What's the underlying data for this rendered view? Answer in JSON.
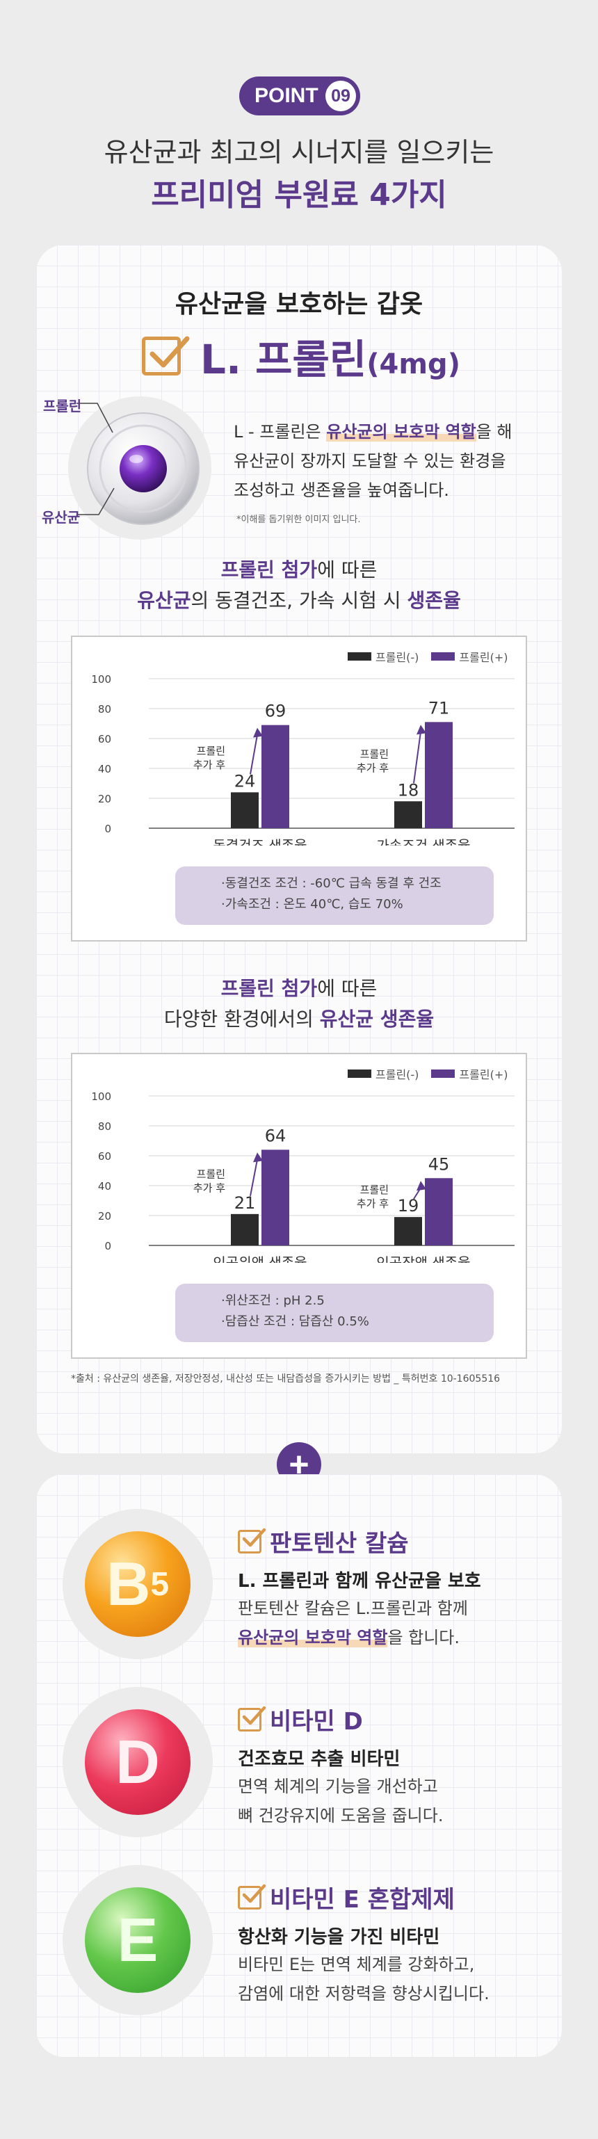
{
  "header": {
    "point_label": "POINT",
    "point_number": "09",
    "subtitle": "유산균과 최고의 시너지를 일으키는",
    "title": "프리미엄 부원료 4가지"
  },
  "proline": {
    "section_title": "유산균을 보호하는 갑옷",
    "name": "L. 프롤린",
    "dose": "(4mg)",
    "orb_label_top": "프롤린",
    "orb_label_bottom": "유산균",
    "desc_line1_pre": "L - 프롤린은 ",
    "desc_line1_hl": "유산균의 보호막 역할",
    "desc_line1_post": "을 해",
    "desc_line2": "유산균이 장까지 도달할 수 있는 환경을",
    "desc_line3": "조성하고 생존율을 높여줍니다.",
    "image_note": "*이해를 돕기위한 이미지 입니다."
  },
  "chart1_heading": {
    "l1_bold": "프롤린 첨가",
    "l1_rest": "에 따른",
    "l2_bold1": "유산균",
    "l2_mid": "의 동결건조, 가속 시험 시 ",
    "l2_bold2": "생존율"
  },
  "chart2_heading": {
    "l1_bold": "프롤린 첨가",
    "l1_rest": "에 따른",
    "l2_pre": "다양한 환경에서의 ",
    "l2_bold": "유산균 생존율"
  },
  "chart_data": [
    {
      "type": "bar",
      "title": "프롤린 첨가에 따른 유산균의 동결건조, 가속 시험 시 생존율",
      "categories": [
        "동결건조 생존율",
        "가속조건 생존율"
      ],
      "series": [
        {
          "name": "프롤린(-)",
          "values": [
            24,
            18
          ],
          "color": "#2b2b2b"
        },
        {
          "name": "프롤린(+)",
          "values": [
            69,
            71
          ],
          "color": "#5b3a8c"
        }
      ],
      "yticks": [
        0,
        20,
        40,
        60,
        80,
        100
      ],
      "ylim": [
        0,
        100
      ],
      "annotation": [
        "프롤린",
        "추가 후"
      ],
      "legend": "top-right",
      "notes": [
        "·동결건조 조건 : -60℃ 급속 동결 후 건조",
        "·가속조건 : 온도 40℃, 습도 70%"
      ]
    },
    {
      "type": "bar",
      "title": "프롤린 첨가에 따른 다양한 환경에서의 유산균 생존율",
      "categories": [
        "인공위액 생존율",
        "인공장액 생존율"
      ],
      "series": [
        {
          "name": "프롤린(-)",
          "values": [
            21,
            19
          ],
          "color": "#2b2b2b"
        },
        {
          "name": "프롤린(+)",
          "values": [
            64,
            45
          ],
          "color": "#5b3a8c"
        }
      ],
      "yticks": [
        0,
        20,
        40,
        60,
        80,
        100
      ],
      "ylim": [
        0,
        100
      ],
      "annotation": [
        "프롤린",
        "추가 후"
      ],
      "legend": "top-right",
      "notes": [
        "·위산조건 : pH 2.5",
        "·담즙산 조건 : 담즙산 0.5%"
      ]
    }
  ],
  "source": "*출처 : 유산균의 생존율, 저장안정성, 내산성 또는 내담즙성을 증가시키는 방법 _ 특허번호 10-1605516",
  "plus_symbol": "+",
  "vitamins": [
    {
      "icon_letter": "B",
      "icon_sub": "5",
      "title": "판토텐산 칼슘",
      "subtitle": "L. 프롤린과 함께 유산균을 보호",
      "line1": "판토텐산 칼슘은 L.프롤린과 함께",
      "line2_hl": "유산균의 보호막 역할",
      "line2_post": "을 합니다."
    },
    {
      "icon_letter": "D",
      "title": "비타민 D",
      "subtitle": "건조효모 추출 비타민",
      "line1": "면역 체계의 기능을 개선하고",
      "line2": "뼈 건강유지에 도움을 줍니다."
    },
    {
      "icon_letter": "E",
      "title": "비타민 E 혼합제제",
      "subtitle": "항산화 기능을 가진 비타민",
      "line1": "비타민 E는 면역 체계를 강화하고,",
      "line2": "감염에 대한 저항력을 향상시킵니다."
    }
  ]
}
